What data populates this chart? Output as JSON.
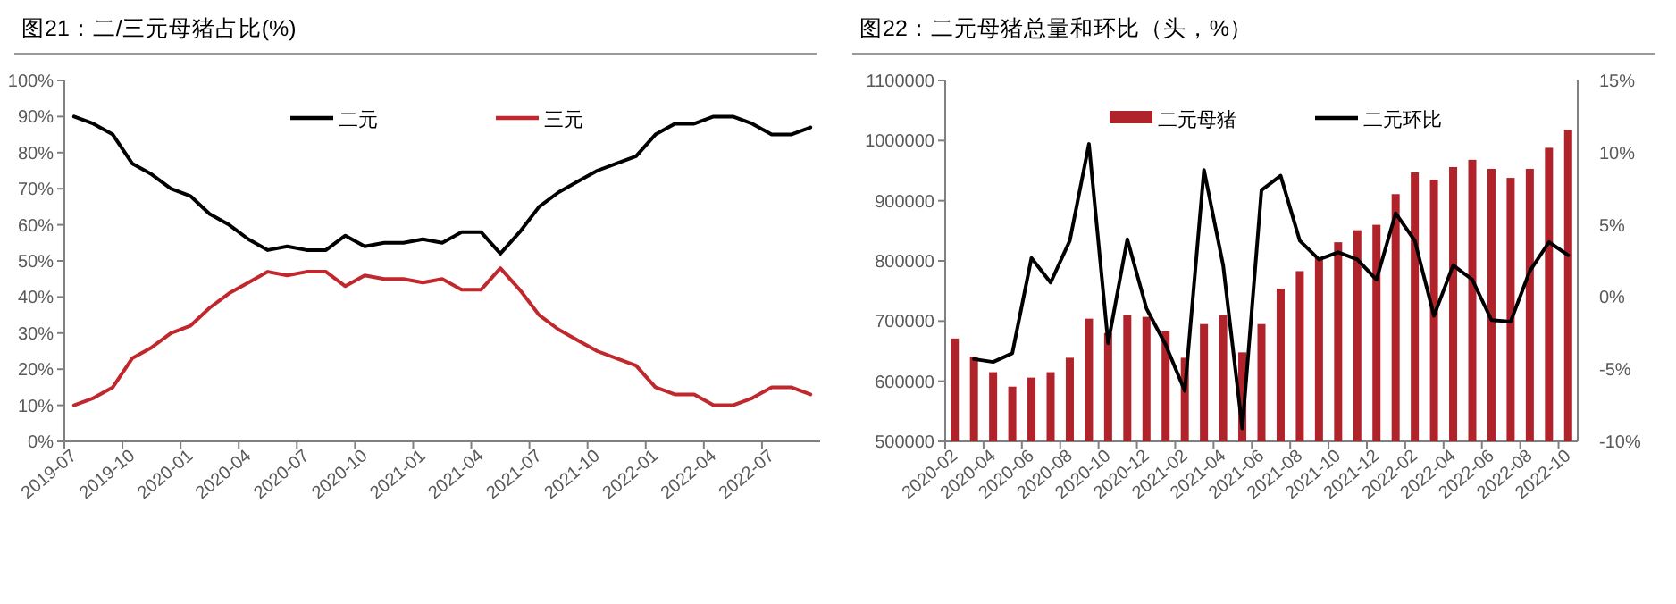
{
  "chart_data": [
    {
      "type": "line",
      "title": "图21：二/三元母猪占比(%)",
      "legend": "top",
      "categories": [
        "2019-07",
        null,
        null,
        "2019-10",
        null,
        null,
        "2020-01",
        null,
        null,
        "2020-04",
        null,
        null,
        "2020-07",
        null,
        null,
        "2020-10",
        null,
        null,
        "2021-01",
        null,
        null,
        "2021-04",
        null,
        null,
        "2021-07",
        null,
        null,
        "2021-10",
        null,
        null,
        "2022-01",
        null,
        null,
        "2022-04",
        null,
        null,
        "2022-07",
        null,
        null
      ],
      "ylim": [
        0,
        100
      ],
      "yticks": [
        {
          "value": 0,
          "label": "0%"
        },
        {
          "value": 10,
          "label": "10%"
        },
        {
          "value": 20,
          "label": "20%"
        },
        {
          "value": 30,
          "label": "30%"
        },
        {
          "value": 40,
          "label": "40%"
        },
        {
          "value": 50,
          "label": "50%"
        },
        {
          "value": 60,
          "label": "60%"
        },
        {
          "value": 70,
          "label": "70%"
        },
        {
          "value": 80,
          "label": "80%"
        },
        {
          "value": 90,
          "label": "90%"
        },
        {
          "value": 100,
          "label": "100%"
        }
      ],
      "series": [
        {
          "name": "二元",
          "color": "#000000",
          "values": [
            90,
            88,
            85,
            77,
            74,
            70,
            68,
            63,
            60,
            56,
            53,
            54,
            53,
            53,
            57,
            54,
            55,
            55,
            56,
            55,
            58,
            58,
            52,
            58,
            65,
            69,
            72,
            75,
            77,
            79,
            85,
            88,
            88,
            90,
            90,
            88,
            85,
            85,
            87
          ]
        },
        {
          "name": "三元",
          "color": "#c0282d",
          "values": [
            10,
            12,
            15,
            23,
            26,
            30,
            32,
            37,
            41,
            44,
            47,
            46,
            47,
            47,
            43,
            46,
            45,
            45,
            44,
            45,
            42,
            42,
            48,
            42,
            35,
            31,
            28,
            25,
            23,
            21,
            15,
            13,
            13,
            10,
            10,
            12,
            15,
            15,
            13
          ]
        }
      ]
    },
    {
      "type": "bar",
      "title": "图22：二元母猪总量和环比（头，%）",
      "legend": "top",
      "categories": [
        "2020-02",
        null,
        "2020-04",
        null,
        "2020-06",
        null,
        "2020-08",
        null,
        "2020-10",
        null,
        "2020-12",
        null,
        "2021-02",
        null,
        "2021-04",
        null,
        "2021-06",
        null,
        "2021-08",
        null,
        "2021-10",
        null,
        "2021-12",
        null,
        "2022-02",
        null,
        "2022-04",
        null,
        "2022-06",
        null,
        "2022-08",
        null,
        "2022-10"
      ],
      "ylim": [
        500000,
        1100000
      ],
      "yticks": [
        500000,
        600000,
        700000,
        800000,
        900000,
        1000000,
        1100000
      ],
      "y2lim": [
        -10,
        15
      ],
      "y2ticks": [
        {
          "value": -10,
          "label": "-10%"
        },
        {
          "value": -5,
          "label": "-5%"
        },
        {
          "value": 0,
          "label": "0%"
        },
        {
          "value": 5,
          "label": "5%"
        },
        {
          "value": 10,
          "label": "10%"
        },
        {
          "value": 15,
          "label": "15%"
        }
      ],
      "series": [
        {
          "name": "二元母猪",
          "color": "#b0232a",
          "values": [
            671000,
            641000,
            615000,
            591000,
            606000,
            615000,
            639000,
            704000,
            680000,
            710000,
            707000,
            683000,
            639000,
            695000,
            710000,
            648000,
            695000,
            754000,
            783000,
            805000,
            831000,
            851000,
            860000,
            911000,
            947000,
            935000,
            956000,
            968000,
            953000,
            938000,
            953000,
            988000,
            1018000
          ]
        },
        {
          "name": "二元环比",
          "type": "line",
          "axis": "y2",
          "color": "#000000",
          "values": [
            null,
            -4.3,
            -4.5,
            -3.9,
            2.7,
            1.0,
            3.9,
            10.6,
            -3.2,
            4.0,
            -0.8,
            -3.3,
            -6.5,
            8.8,
            2.2,
            -9.1,
            7.4,
            8.4,
            3.9,
            2.6,
            3.1,
            2.6,
            1.2,
            5.8,
            3.9,
            -1.3,
            2.2,
            1.2,
            -1.6,
            -1.7,
            1.8,
            3.8,
            2.9
          ]
        }
      ]
    }
  ]
}
